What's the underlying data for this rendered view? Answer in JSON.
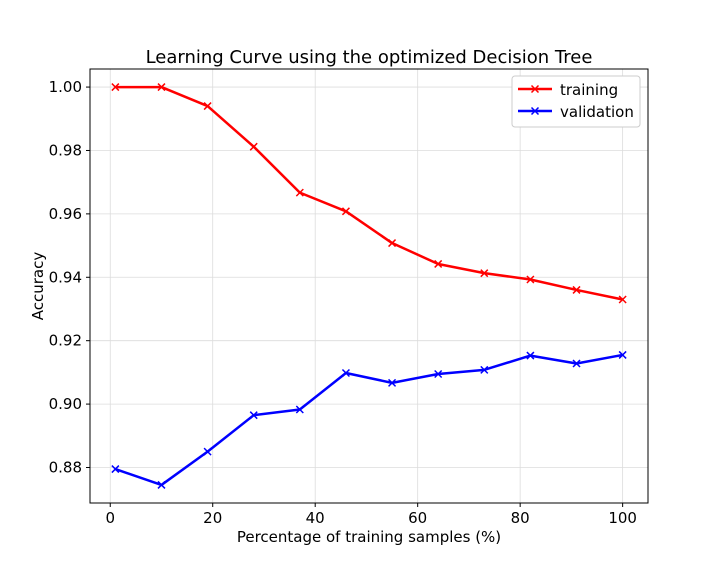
{
  "chart_data": {
    "type": "line",
    "title": "Learning Curve using the optimized Decision Tree",
    "xlabel": "Percentage of training samples (%)",
    "ylabel": "Accuracy",
    "xlim": [
      -3.95,
      104.95
    ],
    "ylim": [
      0.8688,
      1.0057
    ],
    "xticks": [
      0,
      20,
      40,
      60,
      80,
      100
    ],
    "xtick_labels": [
      "0",
      "20",
      "40",
      "60",
      "80",
      "100"
    ],
    "yticks": [
      0.88,
      0.9,
      0.92,
      0.94,
      0.96,
      0.98,
      1.0
    ],
    "ytick_labels": [
      "0.88",
      "0.90",
      "0.92",
      "0.94",
      "0.96",
      "0.98",
      "1.00"
    ],
    "grid": true,
    "legend_position": "top-right",
    "x": [
      1,
      10,
      19,
      28,
      37,
      46,
      55,
      64,
      73,
      82,
      91,
      100
    ],
    "series": [
      {
        "name": "training",
        "color": "#ff0000",
        "marker": "x",
        "values": [
          1.0,
          1.0,
          0.994,
          0.9812,
          0.9667,
          0.9608,
          0.9508,
          0.9442,
          0.9413,
          0.9393,
          0.936,
          0.933
        ]
      },
      {
        "name": "validation",
        "color": "#0000ff",
        "marker": "x",
        "values": [
          0.8795,
          0.8745,
          0.885,
          0.8965,
          0.8983,
          0.9098,
          0.9067,
          0.9095,
          0.9108,
          0.9153,
          0.9128,
          0.9155
        ]
      }
    ]
  }
}
